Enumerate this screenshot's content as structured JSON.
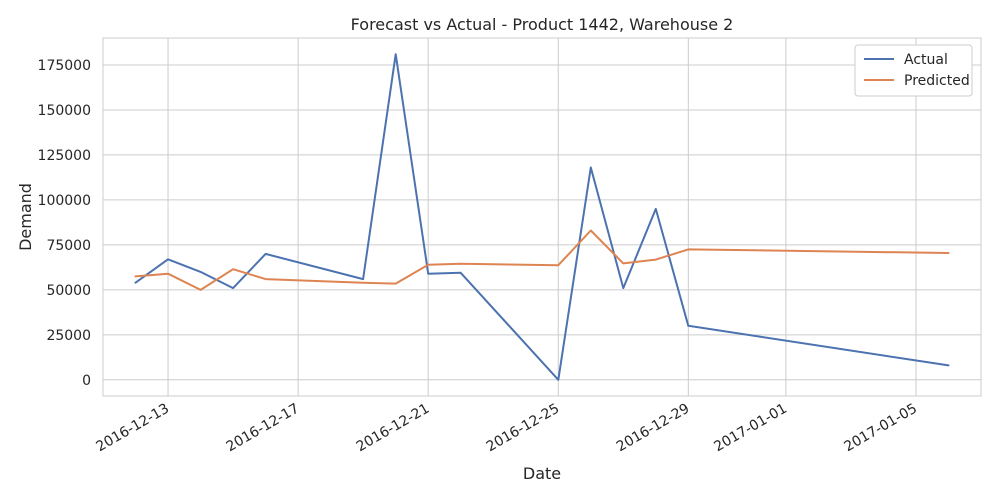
{
  "chart_data": {
    "type": "line",
    "title": "Forecast vs Actual - Product 1442, Warehouse 2",
    "xlabel": "Date",
    "ylabel": "Demand",
    "xlim": [
      "2016-12-11",
      "2017-01-07"
    ],
    "ylim": [
      -9000,
      190000
    ],
    "x_ticks": [
      "2016-12-13",
      "2016-12-17",
      "2016-12-21",
      "2016-12-25",
      "2016-12-29",
      "2017-01-01",
      "2017-01-05"
    ],
    "y_ticks": [
      0,
      25000,
      50000,
      75000,
      100000,
      125000,
      150000,
      175000
    ],
    "grid": true,
    "legend_position": "top-right",
    "series": [
      {
        "name": "Actual",
        "color": "#4c72b0",
        "points": [
          {
            "x": "2016-12-12",
            "y": 54000
          },
          {
            "x": "2016-12-13",
            "y": 67000
          },
          {
            "x": "2016-12-14",
            "y": 60000
          },
          {
            "x": "2016-12-15",
            "y": 51000
          },
          {
            "x": "2016-12-16",
            "y": 70000
          },
          {
            "x": "2016-12-19",
            "y": 56000
          },
          {
            "x": "2016-12-20",
            "y": 181000
          },
          {
            "x": "2016-12-21",
            "y": 59000
          },
          {
            "x": "2016-12-22",
            "y": 59500
          },
          {
            "x": "2016-12-25",
            "y": 0
          },
          {
            "x": "2016-12-26",
            "y": 118000
          },
          {
            "x": "2016-12-27",
            "y": 51000
          },
          {
            "x": "2016-12-28",
            "y": 95000
          },
          {
            "x": "2016-12-29",
            "y": 30000
          },
          {
            "x": "2017-01-06",
            "y": 8000
          }
        ]
      },
      {
        "name": "Predicted",
        "color": "#dd8452",
        "points": [
          {
            "x": "2016-12-12",
            "y": 57500
          },
          {
            "x": "2016-12-13",
            "y": 59000
          },
          {
            "x": "2016-12-14",
            "y": 50000
          },
          {
            "x": "2016-12-15",
            "y": 61500
          },
          {
            "x": "2016-12-16",
            "y": 56000
          },
          {
            "x": "2016-12-19",
            "y": 54000
          },
          {
            "x": "2016-12-20",
            "y": 53500
          },
          {
            "x": "2016-12-21",
            "y": 64000
          },
          {
            "x": "2016-12-22",
            "y": 64500
          },
          {
            "x": "2016-12-25",
            "y": 63700
          },
          {
            "x": "2016-12-26",
            "y": 83000
          },
          {
            "x": "2016-12-27",
            "y": 64700
          },
          {
            "x": "2016-12-28",
            "y": 66800
          },
          {
            "x": "2016-12-29",
            "y": 72500
          },
          {
            "x": "2017-01-06",
            "y": 70500
          }
        ]
      }
    ]
  }
}
